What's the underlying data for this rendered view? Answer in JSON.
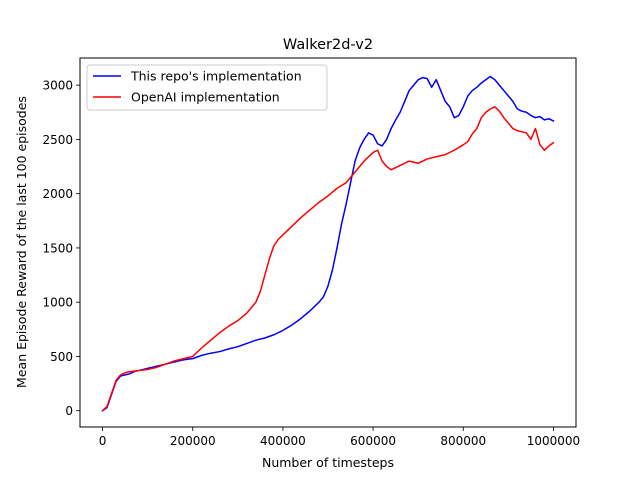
{
  "chart_data": {
    "type": "line",
    "title": "Walker2d-v2",
    "xlabel": "Number of timesteps",
    "ylabel": "Mean Episode Reward of the last 100 episodes",
    "xlim": [
      -50000,
      1050000
    ],
    "ylim": [
      -150,
      3250
    ],
    "xticks": [
      0,
      200000,
      400000,
      600000,
      800000,
      1000000
    ],
    "xtick_labels": [
      "0",
      "200000",
      "400000",
      "600000",
      "800000",
      "1000000"
    ],
    "yticks": [
      0,
      500,
      1000,
      1500,
      2000,
      2500,
      3000
    ],
    "ytick_labels": [
      "0",
      "500",
      "1000",
      "1500",
      "2000",
      "2500",
      "3000"
    ],
    "grid": false,
    "legend_position": "top-left",
    "series": [
      {
        "name": "This repo's implementation",
        "color": "#0000ff",
        "x": [
          0,
          10000,
          20000,
          30000,
          40000,
          50000,
          60000,
          70000,
          80000,
          100000,
          120000,
          140000,
          160000,
          180000,
          200000,
          220000,
          240000,
          260000,
          280000,
          300000,
          320000,
          340000,
          360000,
          380000,
          400000,
          420000,
          440000,
          460000,
          480000,
          490000,
          500000,
          510000,
          520000,
          530000,
          540000,
          550000,
          560000,
          570000,
          580000,
          590000,
          600000,
          610000,
          620000,
          630000,
          640000,
          650000,
          660000,
          670000,
          680000,
          690000,
          700000,
          710000,
          720000,
          730000,
          740000,
          750000,
          760000,
          770000,
          780000,
          790000,
          800000,
          810000,
          820000,
          830000,
          840000,
          850000,
          860000,
          870000,
          880000,
          890000,
          900000,
          910000,
          920000,
          930000,
          940000,
          950000,
          960000,
          970000,
          980000,
          990000,
          1000000
        ],
        "values": [
          0,
          30,
          150,
          270,
          320,
          330,
          340,
          360,
          370,
          390,
          410,
          430,
          450,
          470,
          480,
          510,
          530,
          545,
          570,
          590,
          620,
          650,
          670,
          700,
          740,
          790,
          850,
          920,
          1000,
          1050,
          1150,
          1300,
          1500,
          1720,
          1900,
          2100,
          2300,
          2420,
          2500,
          2560,
          2540,
          2460,
          2440,
          2500,
          2600,
          2680,
          2750,
          2850,
          2950,
          3000,
          3050,
          3070,
          3060,
          2980,
          3050,
          2950,
          2850,
          2800,
          2700,
          2720,
          2800,
          2900,
          2950,
          2980,
          3020,
          3050,
          3080,
          3050,
          3000,
          2950,
          2900,
          2850,
          2780,
          2760,
          2750,
          2720,
          2700,
          2710,
          2680,
          2690,
          2670
        ]
      },
      {
        "name": "OpenAI implementation",
        "color": "#ff0000",
        "x": [
          0,
          10000,
          20000,
          30000,
          40000,
          50000,
          60000,
          70000,
          80000,
          100000,
          120000,
          140000,
          160000,
          180000,
          200000,
          220000,
          240000,
          260000,
          280000,
          300000,
          320000,
          340000,
          350000,
          360000,
          370000,
          380000,
          390000,
          400000,
          420000,
          440000,
          460000,
          480000,
          500000,
          520000,
          540000,
          560000,
          580000,
          600000,
          610000,
          620000,
          630000,
          640000,
          660000,
          680000,
          700000,
          720000,
          740000,
          760000,
          780000,
          800000,
          810000,
          820000,
          830000,
          840000,
          850000,
          860000,
          870000,
          880000,
          890000,
          900000,
          910000,
          920000,
          930000,
          940000,
          950000,
          960000,
          970000,
          980000,
          990000,
          1000000
        ],
        "values": [
          0,
          40,
          160,
          280,
          330,
          350,
          360,
          365,
          370,
          380,
          400,
          430,
          460,
          480,
          500,
          580,
          650,
          720,
          780,
          830,
          900,
          1000,
          1100,
          1250,
          1400,
          1520,
          1580,
          1620,
          1700,
          1780,
          1850,
          1920,
          1980,
          2050,
          2100,
          2200,
          2300,
          2380,
          2400,
          2300,
          2250,
          2220,
          2260,
          2300,
          2280,
          2320,
          2340,
          2360,
          2400,
          2450,
          2480,
          2550,
          2600,
          2700,
          2750,
          2780,
          2800,
          2760,
          2700,
          2650,
          2600,
          2580,
          2570,
          2560,
          2500,
          2600,
          2450,
          2400,
          2440,
          2470
        ]
      }
    ]
  }
}
